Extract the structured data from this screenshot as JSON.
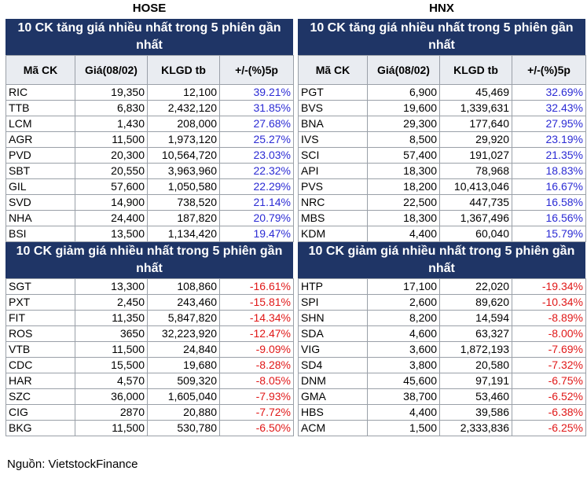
{
  "exchanges": {
    "left": "HOSE",
    "right": "HNX"
  },
  "headers": [
    "Mã CK",
    "Giá(08/02)",
    "KLGD tb",
    "+/-(%)5p"
  ],
  "sections": {
    "gain_title": "10 CK tăng giá nhiều nhất trong 5 phiên gần nhất",
    "loss_title": "10 CK giảm giá nhiều nhất trong 5 phiên gần nhất"
  },
  "hose": {
    "gainers": [
      {
        "code": "RIC",
        "price": "19,350",
        "volume": "12,100",
        "change": "39.21%"
      },
      {
        "code": "TTB",
        "price": "6,830",
        "volume": "2,432,120",
        "change": "31.85%"
      },
      {
        "code": "LCM",
        "price": "1,430",
        "volume": "208,000",
        "change": "27.68%"
      },
      {
        "code": "AGR",
        "price": "11,500",
        "volume": "1,973,120",
        "change": "25.27%"
      },
      {
        "code": "PVD",
        "price": "20,300",
        "volume": "10,564,720",
        "change": "23.03%"
      },
      {
        "code": "SBT",
        "price": "20,550",
        "volume": "3,963,960",
        "change": "22.32%"
      },
      {
        "code": "GIL",
        "price": "57,600",
        "volume": "1,050,580",
        "change": "22.29%"
      },
      {
        "code": "SVD",
        "price": "14,900",
        "volume": "738,520",
        "change": "21.14%"
      },
      {
        "code": "NHA",
        "price": "24,400",
        "volume": "187,820",
        "change": "20.79%"
      },
      {
        "code": "BSI",
        "price": "13,500",
        "volume": "1,134,420",
        "change": "19.47%"
      }
    ],
    "losers": [
      {
        "code": "SGT",
        "price": "13,300",
        "volume": "108,860",
        "change": "-16.61%"
      },
      {
        "code": "PXT",
        "price": "2,450",
        "volume": "243,460",
        "change": "-15.81%"
      },
      {
        "code": "FIT",
        "price": "11,350",
        "volume": "5,847,820",
        "change": "-14.34%"
      },
      {
        "code": "ROS",
        "price": "3650",
        "volume": "32,223,920",
        "change": "-12.47%"
      },
      {
        "code": "VTB",
        "price": "11,500",
        "volume": "24,840",
        "change": "-9.09%"
      },
      {
        "code": "CDC",
        "price": "15,500",
        "volume": "19,680",
        "change": "-8.28%"
      },
      {
        "code": "HAR",
        "price": "4,570",
        "volume": "509,320",
        "change": "-8.05%"
      },
      {
        "code": "SZC",
        "price": "36,000",
        "volume": "1,605,040",
        "change": "-7.93%"
      },
      {
        "code": "CIG",
        "price": "2870",
        "volume": "20,880",
        "change": "-7.72%"
      },
      {
        "code": "BKG",
        "price": "11,500",
        "volume": "530,780",
        "change": "-6.50%"
      }
    ]
  },
  "hnx": {
    "gainers": [
      {
        "code": "PGT",
        "price": "6,900",
        "volume": "45,469",
        "change": "32.69%"
      },
      {
        "code": "BVS",
        "price": "19,600",
        "volume": "1,339,631",
        "change": "32.43%"
      },
      {
        "code": "BNA",
        "price": "29,300",
        "volume": "177,640",
        "change": "27.95%"
      },
      {
        "code": "IVS",
        "price": "8,500",
        "volume": "29,920",
        "change": "23.19%"
      },
      {
        "code": "SCI",
        "price": "57,400",
        "volume": "191,027",
        "change": "21.35%"
      },
      {
        "code": "API",
        "price": "18,300",
        "volume": "78,968",
        "change": "18.83%"
      },
      {
        "code": "PVS",
        "price": "18,200",
        "volume": "10,413,046",
        "change": "16.67%"
      },
      {
        "code": "NRC",
        "price": "22,500",
        "volume": "447,735",
        "change": "16.58%"
      },
      {
        "code": "MBS",
        "price": "18,300",
        "volume": "1,367,496",
        "change": "16.56%"
      },
      {
        "code": "KDM",
        "price": "4,400",
        "volume": "60,040",
        "change": "15.79%"
      }
    ],
    "losers": [
      {
        "code": "HTP",
        "price": "17,100",
        "volume": "22,020",
        "change": "-19.34%"
      },
      {
        "code": "SPI",
        "price": "2,600",
        "volume": "89,620",
        "change": "-10.34%"
      },
      {
        "code": "SHN",
        "price": "8,200",
        "volume": "14,594",
        "change": "-8.89%"
      },
      {
        "code": "SDA",
        "price": "4,600",
        "volume": "63,327",
        "change": "-8.00%"
      },
      {
        "code": "VIG",
        "price": "3,600",
        "volume": "1,872,193",
        "change": "-7.69%"
      },
      {
        "code": "SD4",
        "price": "3,800",
        "volume": "20,580",
        "change": "-7.32%"
      },
      {
        "code": "DNM",
        "price": "45,600",
        "volume": "97,191",
        "change": "-6.75%"
      },
      {
        "code": "GMA",
        "price": "38,700",
        "volume": "53,460",
        "change": "-6.52%"
      },
      {
        "code": "HBS",
        "price": "4,400",
        "volume": "39,586",
        "change": "-6.38%"
      },
      {
        "code": "ACM",
        "price": "1,500",
        "volume": "2,333,836",
        "change": "-6.25%"
      }
    ]
  },
  "source": "Nguồn: VietstockFinance",
  "colors": {
    "header_bg": "#1f3566",
    "up": "#2b2bd4",
    "down": "#e01818"
  }
}
